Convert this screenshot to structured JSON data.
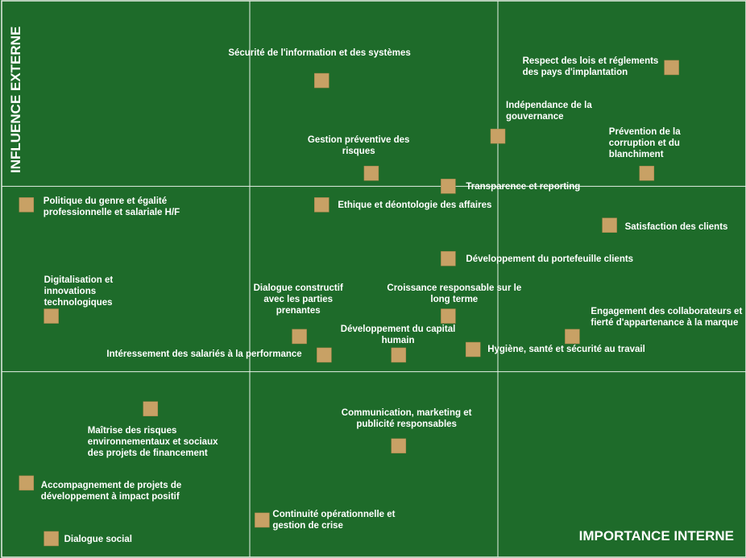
{
  "chart_data": {
    "type": "scatter",
    "title": "",
    "xlabel": "IMPORTANCE INTERNE",
    "ylabel": "INFLUENCE EXTERNE",
    "grid": true,
    "grid_divisions": 3,
    "marker_color": "#c8a165",
    "background_color": "#1e6b2a",
    "grid_color": "#e8f0e8",
    "points": [
      {
        "label": "Sécurité de l'information et des systèmes",
        "x": 1.29,
        "y": 2.57
      },
      {
        "label": "Respect des lois et réglements\ndes pays d'implantation",
        "x": 2.7,
        "y": 2.64
      },
      {
        "label": "Indépendance de la\ngouvernance",
        "x": 2.0,
        "y": 2.27
      },
      {
        "label": "Gestion préventive des\nrisques",
        "x": 1.49,
        "y": 2.07
      },
      {
        "label": "Prévention de la\ncorruption et du\nblanchiment",
        "x": 2.6,
        "y": 2.07
      },
      {
        "label": "Transparence et reporting",
        "x": 1.8,
        "y": 2.0
      },
      {
        "label": "Politique du genre et égalité\nprofessionnelle et salariale H/F",
        "x": 0.1,
        "y": 1.9
      },
      {
        "label": "Ethique et déontologie des affaires",
        "x": 1.29,
        "y": 1.9
      },
      {
        "label": "Satisfaction des clients",
        "x": 2.45,
        "y": 1.79
      },
      {
        "label": "Développement du portefeuille clients",
        "x": 1.8,
        "y": 1.61
      },
      {
        "label": "Digitalisation  et\ninnovations\ntechnologiques",
        "x": 0.2,
        "y": 1.3
      },
      {
        "label": "Dialogue  constructif\navec les parties\nprenantes",
        "x": 1.2,
        "y": 1.19
      },
      {
        "label": "Croissance responsable sur le\nlong terme",
        "x": 1.8,
        "y": 1.3
      },
      {
        "label": "Engagement des collaborateurs et\nfierté d'appartenance à la marque",
        "x": 2.3,
        "y": 1.19
      },
      {
        "label": "Intéressement des salariés à la performance",
        "x": 1.3,
        "y": 1.09
      },
      {
        "label": "Développement  du capital\nhumain",
        "x": 1.6,
        "y": 1.09
      },
      {
        "label": "Hygiène, santé et sécurité au travail",
        "x": 1.9,
        "y": 1.12
      },
      {
        "label": "Maîtrise des risques\nenvironnementaux et sociaux\ndes projets de financement",
        "x": 0.6,
        "y": 0.8
      },
      {
        "label": "Communication, marketing et\npublicité responsables",
        "x": 1.6,
        "y": 0.6
      },
      {
        "label": "Accompagnement de projets de\ndéveloppement à impact positif",
        "x": 0.1,
        "y": 0.4
      },
      {
        "label": "Continuité  opérationnelle et\ngestion de crise",
        "x": 1.05,
        "y": 0.2
      },
      {
        "label": "Dialogue  social",
        "x": 0.2,
        "y": 0.1
      }
    ]
  }
}
